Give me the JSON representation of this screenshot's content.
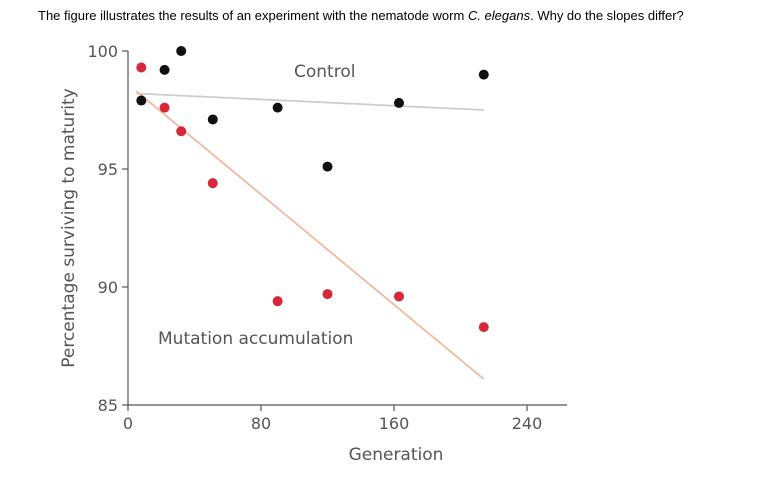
{
  "question": {
    "before": "The figure illustrates the results of an experiment with the nematode worm ",
    "species": "C. elegans",
    "after": ". Why do the slopes differ?"
  },
  "chart_data": {
    "type": "scatter",
    "xlabel": "Generation",
    "ylabel": "Percentage surviving to maturity",
    "xlim": [
      0,
      240
    ],
    "ylim": [
      85,
      100
    ],
    "xticks": [
      0,
      80,
      160,
      240
    ],
    "yticks": [
      85,
      90,
      95,
      100
    ],
    "grid": false,
    "series": [
      {
        "name": "Control",
        "color": "#111111",
        "points": [
          {
            "x": 8,
            "y": 97.9
          },
          {
            "x": 22,
            "y": 99.2
          },
          {
            "x": 32,
            "y": 100.0
          },
          {
            "x": 51,
            "y": 97.1
          },
          {
            "x": 90,
            "y": 97.6
          },
          {
            "x": 120,
            "y": 95.1
          },
          {
            "x": 163,
            "y": 97.8
          },
          {
            "x": 214,
            "y": 99.0
          }
        ],
        "trend": {
          "color": "#cccccc",
          "from": [
            5,
            98.2
          ],
          "to": [
            214,
            97.5
          ]
        }
      },
      {
        "name": "Mutation accumulation",
        "color": "#d62839",
        "points": [
          {
            "x": 8,
            "y": 99.3
          },
          {
            "x": 22,
            "y": 97.6
          },
          {
            "x": 32,
            "y": 96.6
          },
          {
            "x": 51,
            "y": 94.4
          },
          {
            "x": 90,
            "y": 89.4
          },
          {
            "x": 120,
            "y": 89.7
          },
          {
            "x": 163,
            "y": 89.6
          },
          {
            "x": 214,
            "y": 88.3
          }
        ],
        "trend": {
          "color": "#f0b9a0",
          "from": [
            5,
            98.3
          ],
          "to": [
            214,
            86.1
          ]
        }
      }
    ]
  }
}
